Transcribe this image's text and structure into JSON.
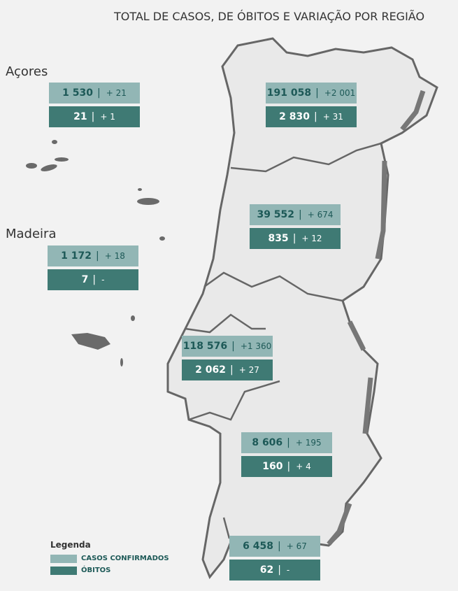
{
  "title": "TOTAL DE CASOS, DE ÓBITOS E VARIAÇÃO POR REGIÃO",
  "islands": [
    {
      "label": "Açores"
    },
    {
      "label": "Madeira"
    }
  ],
  "regions": [
    {
      "cases": "1 530",
      "cases_change": "+ 21",
      "deaths": "21",
      "deaths_change": "+ 1"
    },
    {
      "cases": "1 172",
      "cases_change": "+ 18",
      "deaths": "7",
      "deaths_change": "-"
    },
    {
      "cases": "191 058",
      "cases_change": "+2 001",
      "deaths": "2 830",
      "deaths_change": "+ 31"
    },
    {
      "cases": "39 552",
      "cases_change": "+ 674",
      "deaths": "835",
      "deaths_change": "+ 12"
    },
    {
      "cases": "118 576",
      "cases_change": "+1 360",
      "deaths": "2 062",
      "deaths_change": "+ 27"
    },
    {
      "cases": "8 606",
      "cases_change": "+ 195",
      "deaths": "160",
      "deaths_change": "+ 4"
    },
    {
      "cases": "6 458",
      "cases_change": "+ 67",
      "deaths": "62",
      "deaths_change": "-"
    }
  ],
  "legend": {
    "title": "Legenda",
    "items": [
      "CASOS CONFIRMADOS",
      "ÓBITOS"
    ]
  }
}
